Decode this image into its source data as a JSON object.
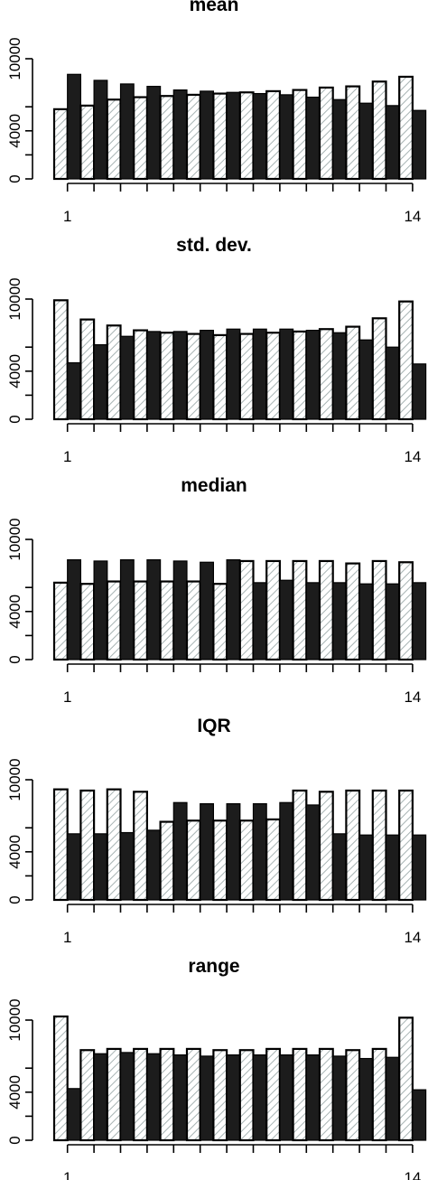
{
  "chart_data": [
    {
      "type": "bar",
      "title": "mean",
      "xlabel": "",
      "ylabel": "",
      "ylim": [
        0,
        10000
      ],
      "y_ticks": [
        "0",
        "4000",
        "10000"
      ],
      "x_tick_labels": [
        "1",
        "14"
      ],
      "categories": [
        "1",
        "2",
        "3",
        "4",
        "5",
        "6",
        "7",
        "8",
        "9",
        "10",
        "11",
        "12",
        "13",
        "14"
      ],
      "series": [
        {
          "pattern": "hatched",
          "values": [
            5800,
            6100,
            6600,
            6800,
            6900,
            7000,
            7100,
            7200,
            7300,
            7400,
            7600,
            7700,
            8100,
            8500
          ]
        },
        {
          "pattern": "solid",
          "values": [
            8700,
            8200,
            7900,
            7700,
            7400,
            7300,
            7200,
            7100,
            7000,
            6800,
            6600,
            6300,
            6100,
            5700
          ]
        }
      ],
      "colors": {
        "hatched_fill": "#ffffff",
        "hatch_line": "#a8b4b4",
        "solid_fill": "#1c1c1c"
      },
      "grid": false
    },
    {
      "type": "bar",
      "title": "std. dev.",
      "xlabel": "",
      "ylabel": "",
      "ylim": [
        0,
        10000
      ],
      "y_ticks": [
        "0",
        "4000",
        "10000"
      ],
      "x_tick_labels": [
        "1",
        "14"
      ],
      "categories": [
        "1",
        "2",
        "3",
        "4",
        "5",
        "6",
        "7",
        "8",
        "9",
        "10",
        "11",
        "12",
        "13",
        "14"
      ],
      "series": [
        {
          "pattern": "hatched",
          "values": [
            9900,
            8300,
            7800,
            7400,
            7200,
            7100,
            7000,
            7100,
            7200,
            7300,
            7500,
            7700,
            8400,
            9800
          ]
        },
        {
          "pattern": "solid",
          "values": [
            4700,
            6200,
            6900,
            7300,
            7300,
            7400,
            7500,
            7500,
            7500,
            7400,
            7200,
            6600,
            6000,
            4600
          ]
        }
      ],
      "colors": {
        "hatched_fill": "#ffffff",
        "hatch_line": "#a8b4b4",
        "solid_fill": "#1c1c1c"
      },
      "grid": false
    },
    {
      "type": "bar",
      "title": "median",
      "xlabel": "",
      "ylabel": "",
      "ylim": [
        0,
        10000
      ],
      "y_ticks": [
        "0",
        "4000",
        "10000"
      ],
      "x_tick_labels": [
        "1",
        "14"
      ],
      "categories": [
        "1",
        "2",
        "3",
        "4",
        "5",
        "6",
        "7",
        "8",
        "9",
        "10",
        "11",
        "12",
        "13",
        "14"
      ],
      "series": [
        {
          "pattern": "hatched",
          "values": [
            6400,
            6300,
            6500,
            6500,
            6500,
            6500,
            6300,
            8200,
            8200,
            8200,
            8200,
            8000,
            8200,
            8100
          ]
        },
        {
          "pattern": "solid",
          "values": [
            8300,
            8200,
            8300,
            8300,
            8200,
            8100,
            8300,
            6400,
            6600,
            6400,
            6400,
            6300,
            6300,
            6400
          ]
        }
      ],
      "colors": {
        "hatched_fill": "#ffffff",
        "hatch_line": "#a8b4b4",
        "solid_fill": "#1c1c1c"
      },
      "grid": false
    },
    {
      "type": "bar",
      "title": "IQR",
      "xlabel": "",
      "ylabel": "",
      "ylim": [
        0,
        10000
      ],
      "y_ticks": [
        "0",
        "4000",
        "10000"
      ],
      "x_tick_labels": [
        "1",
        "14"
      ],
      "categories": [
        "1",
        "2",
        "3",
        "4",
        "5",
        "6",
        "7",
        "8",
        "9",
        "10",
        "11",
        "12",
        "13",
        "14"
      ],
      "series": [
        {
          "pattern": "hatched",
          "values": [
            9200,
            9100,
            9200,
            9000,
            6500,
            6600,
            6600,
            6600,
            6700,
            9100,
            9000,
            9100,
            9100,
            9100
          ]
        },
        {
          "pattern": "solid",
          "values": [
            5500,
            5500,
            5600,
            5800,
            8100,
            8000,
            8000,
            8000,
            8100,
            7900,
            5500,
            5400,
            5400,
            5400
          ]
        }
      ],
      "colors": {
        "hatched_fill": "#ffffff",
        "hatch_line": "#a8b4b4",
        "solid_fill": "#1c1c1c"
      },
      "grid": false
    },
    {
      "type": "bar",
      "title": "range",
      "xlabel": "",
      "ylabel": "",
      "ylim": [
        0,
        10000
      ],
      "y_ticks": [
        "0",
        "4000",
        "10000"
      ],
      "x_tick_labels": [
        "1",
        "14"
      ],
      "categories": [
        "1",
        "2",
        "3",
        "4",
        "5",
        "6",
        "7",
        "8",
        "9",
        "10",
        "11",
        "12",
        "13",
        "14"
      ],
      "series": [
        {
          "pattern": "hatched",
          "values": [
            10300,
            7500,
            7600,
            7600,
            7600,
            7600,
            7500,
            7500,
            7600,
            7600,
            7600,
            7500,
            7600,
            10200
          ]
        },
        {
          "pattern": "solid",
          "values": [
            4300,
            7200,
            7300,
            7200,
            7100,
            7000,
            7100,
            7100,
            7100,
            7100,
            7000,
            6800,
            6900,
            4200
          ]
        }
      ],
      "colors": {
        "hatched_fill": "#ffffff",
        "hatch_line": "#a8b4b4",
        "solid_fill": "#1c1c1c"
      },
      "grid": false
    }
  ]
}
